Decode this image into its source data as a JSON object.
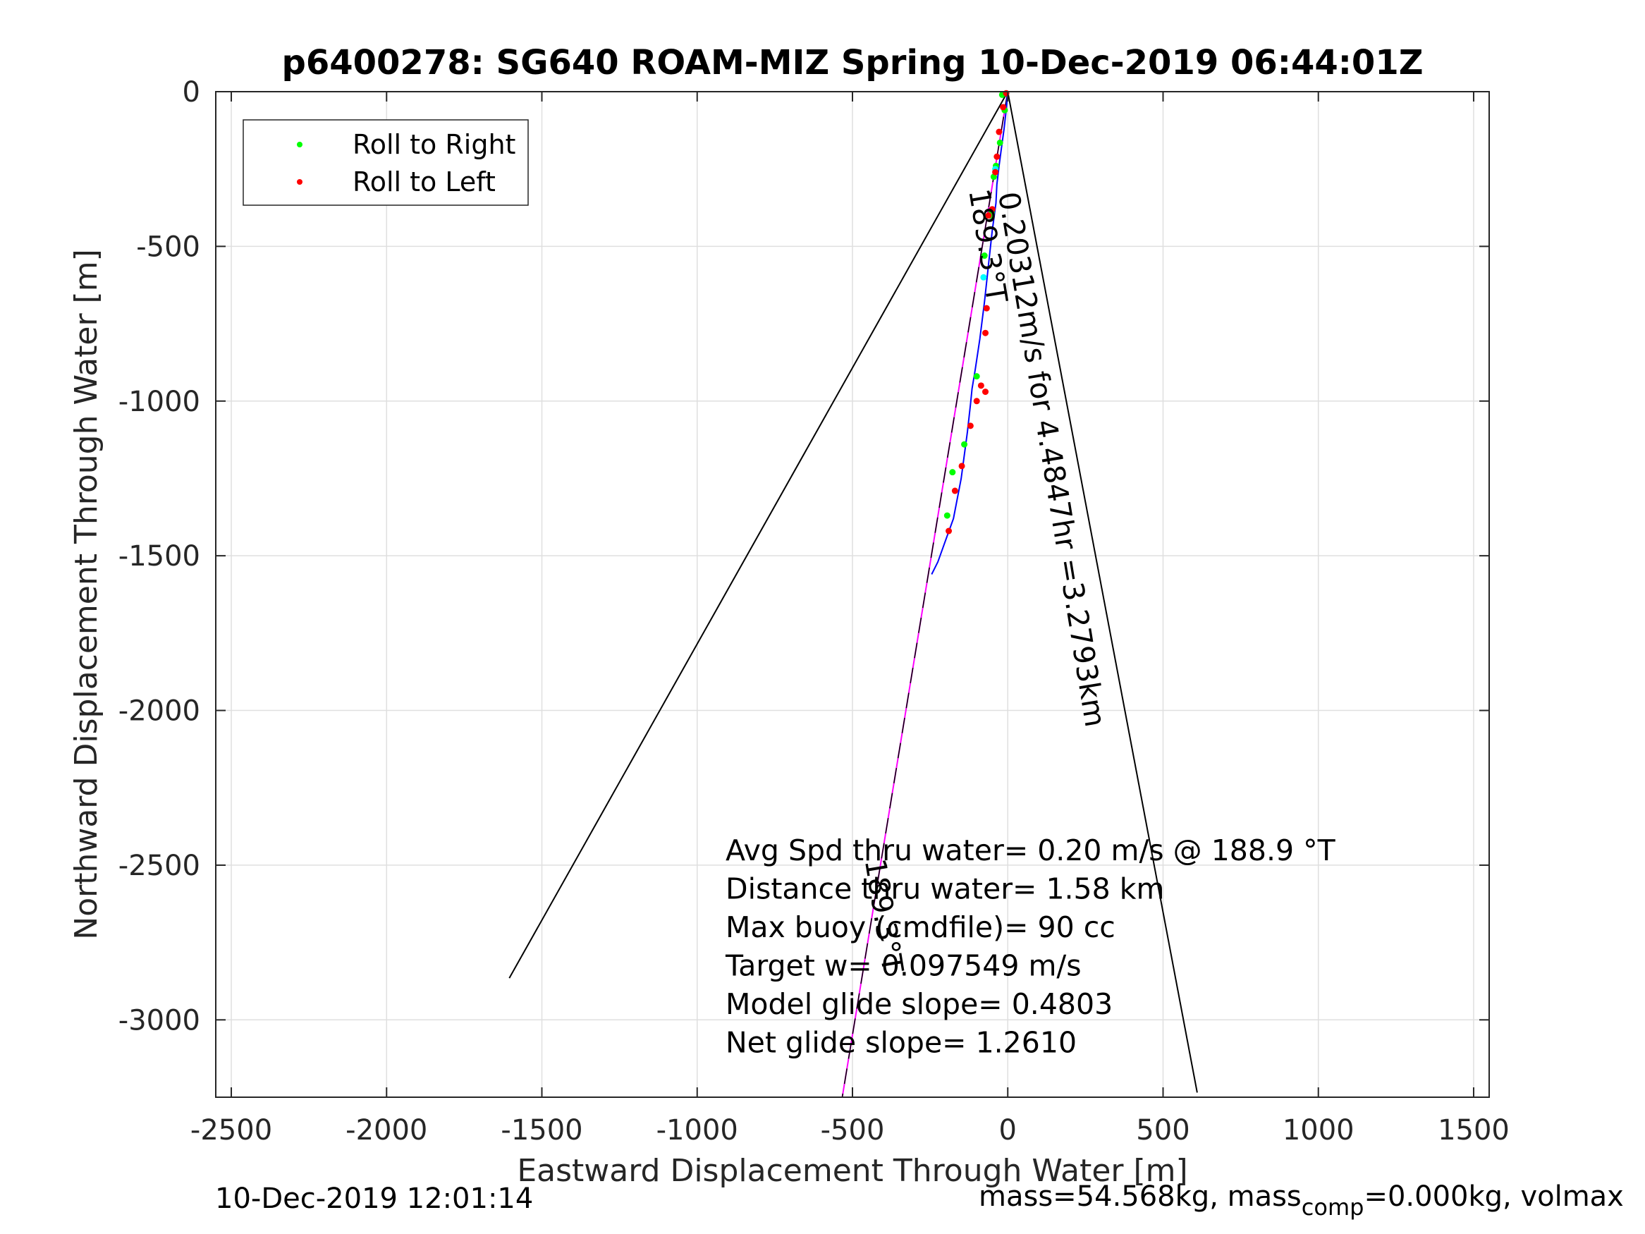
{
  "chart_data": {
    "type": "line",
    "title": "p6400278: SG640 ROAM-MIZ Spring 10-Dec-2019 06:44:01Z",
    "xlabel": "Eastward Displacement Through Water [m]",
    "ylabel": "Northward Displacement Through Water [m]",
    "xlim": [
      -2550,
      1550
    ],
    "ylim": [
      -3250,
      0
    ],
    "xticks": [
      -2500,
      -2000,
      -1500,
      -1000,
      -500,
      0,
      500,
      1000,
      1500
    ],
    "yticks": [
      0,
      -500,
      -1000,
      -1500,
      -2000,
      -2500,
      -3000
    ],
    "grid": true,
    "legend": {
      "placement": "top-left",
      "entries": [
        {
          "label": "Roll to Right",
          "color": "#00ff00"
        },
        {
          "label": "Roll to Left",
          "color": "#ff0000"
        }
      ]
    },
    "series": [
      {
        "color": "#000000",
        "x": [
          0,
          -1605
        ],
        "y": [
          0,
          -2865
        ]
      },
      {
        "color": "#000000",
        "x": [
          0,
          610
        ],
        "y": [
          0,
          -3235
        ]
      },
      {
        "color": "#ff00ff",
        "x": [
          0,
          -533
        ],
        "y": [
          0,
          -3250
        ]
      },
      {
        "color": "#000000",
        "dashed": true,
        "x": [
          0,
          -533
        ],
        "y": [
          0,
          -3250
        ]
      },
      {
        "color": "#0000ff",
        "x": [
          0,
          -5,
          -12,
          -20,
          -28,
          -35,
          -38,
          -50,
          -62,
          -75,
          -90,
          -105,
          -115,
          -120,
          -130,
          -150,
          -175,
          -200,
          -225,
          -245
        ],
        "y": [
          0,
          -60,
          -120,
          -180,
          -240,
          -300,
          -360,
          -450,
          -560,
          -680,
          -800,
          -900,
          -960,
          -1010,
          -1100,
          -1250,
          -1380,
          -1450,
          -1520,
          -1560
        ]
      }
    ],
    "scatter": [
      {
        "name": "Roll to Right",
        "color": "#00ff00",
        "x": [
          -18,
          -10,
          -25,
          -38,
          -45,
          -52,
          -58,
          -75,
          -100,
          -140,
          -178,
          -195
        ],
        "y": [
          -10,
          -60,
          -165,
          -240,
          -275,
          -390,
          -400,
          -530,
          -920,
          -1140,
          -1230,
          -1370
        ]
      },
      {
        "color": "#00ffff",
        "x": [
          -40,
          -78
        ],
        "y": [
          -250,
          -600
        ]
      },
      {
        "name": "Roll to Left",
        "color": "#ff0000",
        "x": [
          -5,
          -15,
          -28,
          -35,
          -40,
          -50,
          -62,
          -68,
          -72,
          -86,
          -72,
          -100,
          -120,
          -148,
          -170,
          -190
        ],
        "y": [
          -5,
          -50,
          -130,
          -210,
          -260,
          -380,
          -400,
          -700,
          -780,
          -950,
          -970,
          -1000,
          -1080,
          -1210,
          -1290,
          -1420
        ]
      }
    ],
    "annotations": [
      {
        "text": "189.3°T",
        "x": -125,
        "y": -320,
        "angle": 80.7,
        "anchor": "start"
      },
      {
        "text": "0.20312m/s for 4.4847hr =3.2793km",
        "x": -30,
        "y": -330,
        "angle": 80.7,
        "anchor": "start"
      },
      {
        "text": "189.3°T",
        "x": -460,
        "y": -2485,
        "angle": 80.7,
        "anchor": "start"
      }
    ],
    "stats_lines": [
      "Avg Spd thru water=  0.20 m/s @ 188.9 °T",
      "Distance thru water=  1.58 km",
      "Max buoy (cmdfile)= 90 cc",
      "Target w= 0.097549 m/s",
      "Model glide slope= 0.4803",
      "Net glide slope= 1.2610"
    ],
    "footer_left": "10-Dec-2019 12:01:14",
    "footer_right": {
      "prefix": "mass=54.568kg, mass",
      "subscript": "comp",
      "suffix": "=0.000kg, volmax"
    }
  }
}
